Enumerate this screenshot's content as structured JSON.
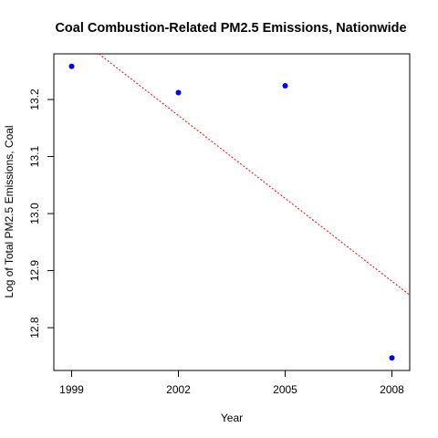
{
  "chart_data": {
    "type": "scatter",
    "title": "Coal Combustion-Related PM2.5 Emissions, Nationwide",
    "xlabel": "Year",
    "ylabel": "Log of Total PM2.5 Emissions, Coal",
    "x": [
      1999,
      2002,
      2005,
      2008
    ],
    "y": [
      13.258,
      13.212,
      13.224,
      12.747
    ],
    "xlim": [
      1998.5,
      2008.5
    ],
    "ylim": [
      12.725,
      13.28
    ],
    "x_ticks": [
      "1999",
      "2002",
      "2005",
      "2008"
    ],
    "y_ticks": [
      "12.8",
      "12.9",
      "13.0",
      "13.1",
      "13.2"
    ],
    "trend_line": {
      "type": "linear",
      "intercept_at_1999": 13.317,
      "slope_per_year": -0.0484,
      "style": "dotted"
    },
    "grid": false,
    "legend": "none",
    "colors": {
      "points": "#0000ff",
      "trend": "#ff0000",
      "axes": "#000000"
    }
  }
}
